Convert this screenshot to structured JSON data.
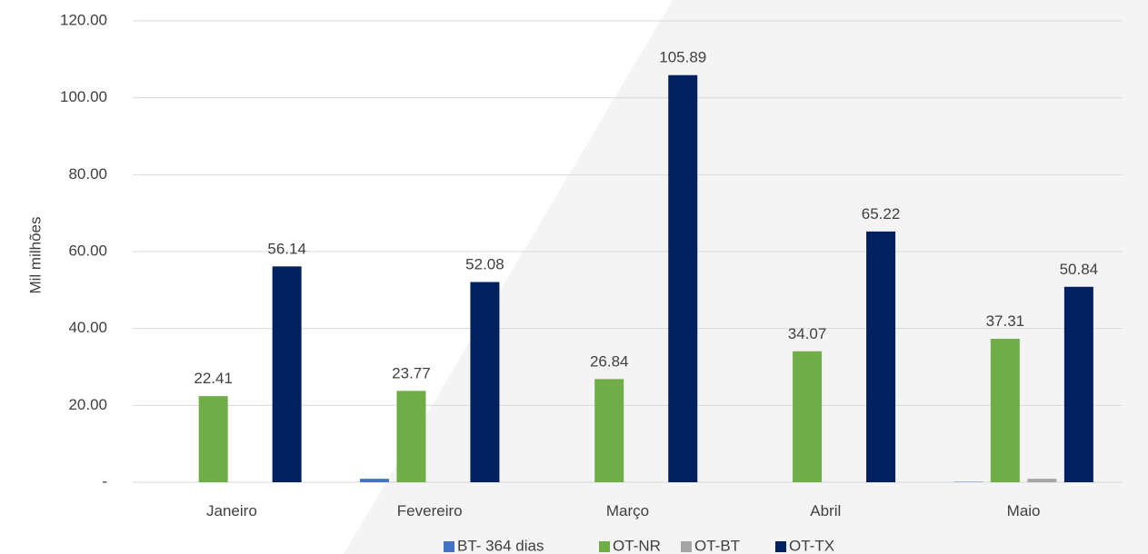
{
  "chart_data": {
    "type": "bar",
    "title": "",
    "xlabel": "",
    "ylabel": "Mil milhões",
    "categories": [
      "Janeiro",
      "Fevereiro",
      "Março",
      "Abril",
      "Maio"
    ],
    "series": [
      {
        "name": "BT- 364 dias",
        "color": "#4472C4",
        "values": [
          0,
          0.9,
          0,
          0,
          0.1
        ],
        "labels": [
          "",
          "",
          "",
          "",
          ""
        ]
      },
      {
        "name": "OT-NR",
        "color": "#70AD47",
        "values": [
          22.41,
          23.77,
          26.84,
          34.07,
          37.31
        ],
        "labels": [
          "22.41",
          "23.77",
          "26.84",
          "34.07",
          "37.31"
        ]
      },
      {
        "name": "OT-BT",
        "color": "#A5A5A5",
        "values": [
          0,
          0,
          0,
          0,
          0.9
        ],
        "labels": [
          "",
          "",
          "",
          "",
          ""
        ]
      },
      {
        "name": "OT-TX",
        "color": "#002060",
        "values": [
          56.14,
          52.08,
          105.89,
          65.22,
          50.84
        ],
        "labels": [
          "56.14",
          "52.08",
          "105.89",
          "65.22",
          "50.84"
        ]
      }
    ],
    "ylim": [
      0,
      120
    ],
    "yticks": [
      0,
      20,
      40,
      60,
      80,
      100,
      120
    ],
    "ytick_labels": [
      "-",
      "20.00",
      "40.00",
      "60.00",
      "80.00",
      "100.00",
      "120.00"
    ],
    "grid": true,
    "legend_position": "bottom"
  }
}
